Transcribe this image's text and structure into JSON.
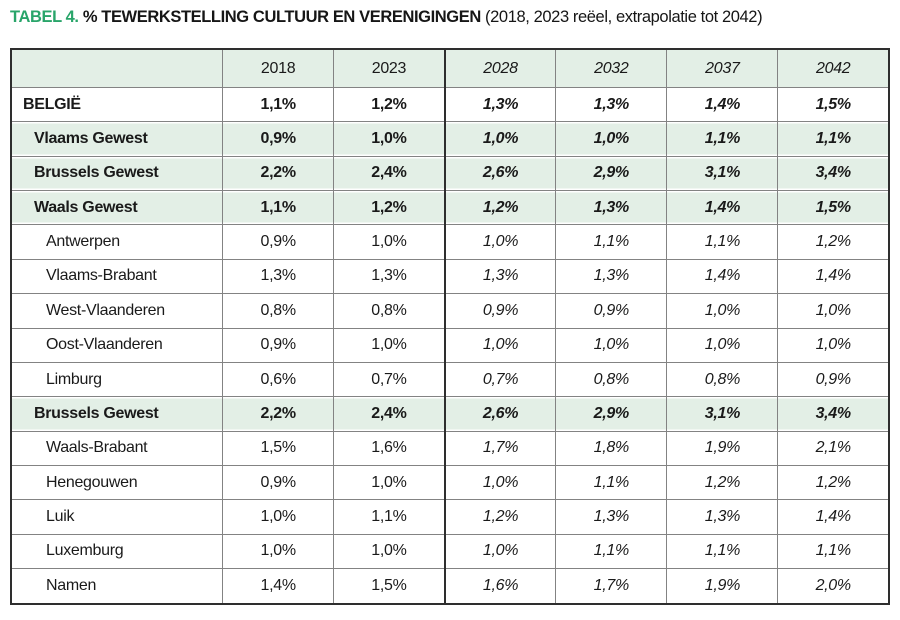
{
  "title": {
    "label": "TABEL 4.",
    "heading": "% TEWERKSTELLING CULTUUR EN VERENIGINGEN",
    "subtitle": "(2018, 2023 reëel, extrapolatie tot 2042)"
  },
  "colors": {
    "accent_green": "#29a56a",
    "band_green": "#e3efe6",
    "border_dark": "#2e2e2e",
    "border_light": "#838383"
  },
  "chart_data": {
    "type": "table",
    "title": "TABEL 4. % TEWERKSTELLING CULTUUR EN VERENIGINGEN (2018, 2023 reëel, extrapolatie tot 2042)",
    "columns": [
      "",
      "2018",
      "2023",
      "2028",
      "2032",
      "2037",
      "2042"
    ],
    "real_columns": [
      "2018",
      "2023"
    ],
    "extrapolated_columns": [
      "2028",
      "2032",
      "2037",
      "2042"
    ],
    "rows": [
      {
        "label": "BELGIË",
        "style": "country",
        "values": [
          "1,1%",
          "1,2%",
          "1,3%",
          "1,3%",
          "1,4%",
          "1,5%"
        ]
      },
      {
        "label": "Vlaams Gewest",
        "style": "region",
        "values": [
          "0,9%",
          "1,0%",
          "1,0%",
          "1,0%",
          "1,1%",
          "1,1%"
        ]
      },
      {
        "label": "Brussels Gewest",
        "style": "region",
        "values": [
          "2,2%",
          "2,4%",
          "2,6%",
          "2,9%",
          "3,1%",
          "3,4%"
        ]
      },
      {
        "label": "Waals Gewest",
        "style": "region",
        "values": [
          "1,1%",
          "1,2%",
          "1,2%",
          "1,3%",
          "1,4%",
          "1,5%"
        ]
      },
      {
        "label": "Antwerpen",
        "style": "province",
        "values": [
          "0,9%",
          "1,0%",
          "1,0%",
          "1,1%",
          "1,1%",
          "1,2%"
        ]
      },
      {
        "label": "Vlaams-Brabant",
        "style": "province",
        "values": [
          "1,3%",
          "1,3%",
          "1,3%",
          "1,3%",
          "1,4%",
          "1,4%"
        ]
      },
      {
        "label": "West-Vlaanderen",
        "style": "province",
        "values": [
          "0,8%",
          "0,8%",
          "0,9%",
          "0,9%",
          "1,0%",
          "1,0%"
        ]
      },
      {
        "label": "Oost-Vlaanderen",
        "style": "province",
        "values": [
          "0,9%",
          "1,0%",
          "1,0%",
          "1,0%",
          "1,0%",
          "1,0%"
        ]
      },
      {
        "label": "Limburg",
        "style": "province",
        "values": [
          "0,6%",
          "0,7%",
          "0,7%",
          "0,8%",
          "0,8%",
          "0,9%"
        ]
      },
      {
        "label": "Brussels Gewest",
        "style": "region",
        "values": [
          "2,2%",
          "2,4%",
          "2,6%",
          "2,9%",
          "3,1%",
          "3,4%"
        ]
      },
      {
        "label": "Waals-Brabant",
        "style": "province",
        "values": [
          "1,5%",
          "1,6%",
          "1,7%",
          "1,8%",
          "1,9%",
          "2,1%"
        ]
      },
      {
        "label": "Henegouwen",
        "style": "province",
        "values": [
          "0,9%",
          "1,0%",
          "1,0%",
          "1,1%",
          "1,2%",
          "1,2%"
        ]
      },
      {
        "label": "Luik",
        "style": "province",
        "values": [
          "1,0%",
          "1,1%",
          "1,2%",
          "1,3%",
          "1,3%",
          "1,4%"
        ]
      },
      {
        "label": "Luxemburg",
        "style": "province",
        "values": [
          "1,0%",
          "1,0%",
          "1,0%",
          "1,1%",
          "1,1%",
          "1,1%"
        ]
      },
      {
        "label": "Namen",
        "style": "province",
        "values": [
          "1,4%",
          "1,5%",
          "1,6%",
          "1,7%",
          "1,9%",
          "2,0%"
        ]
      }
    ]
  }
}
